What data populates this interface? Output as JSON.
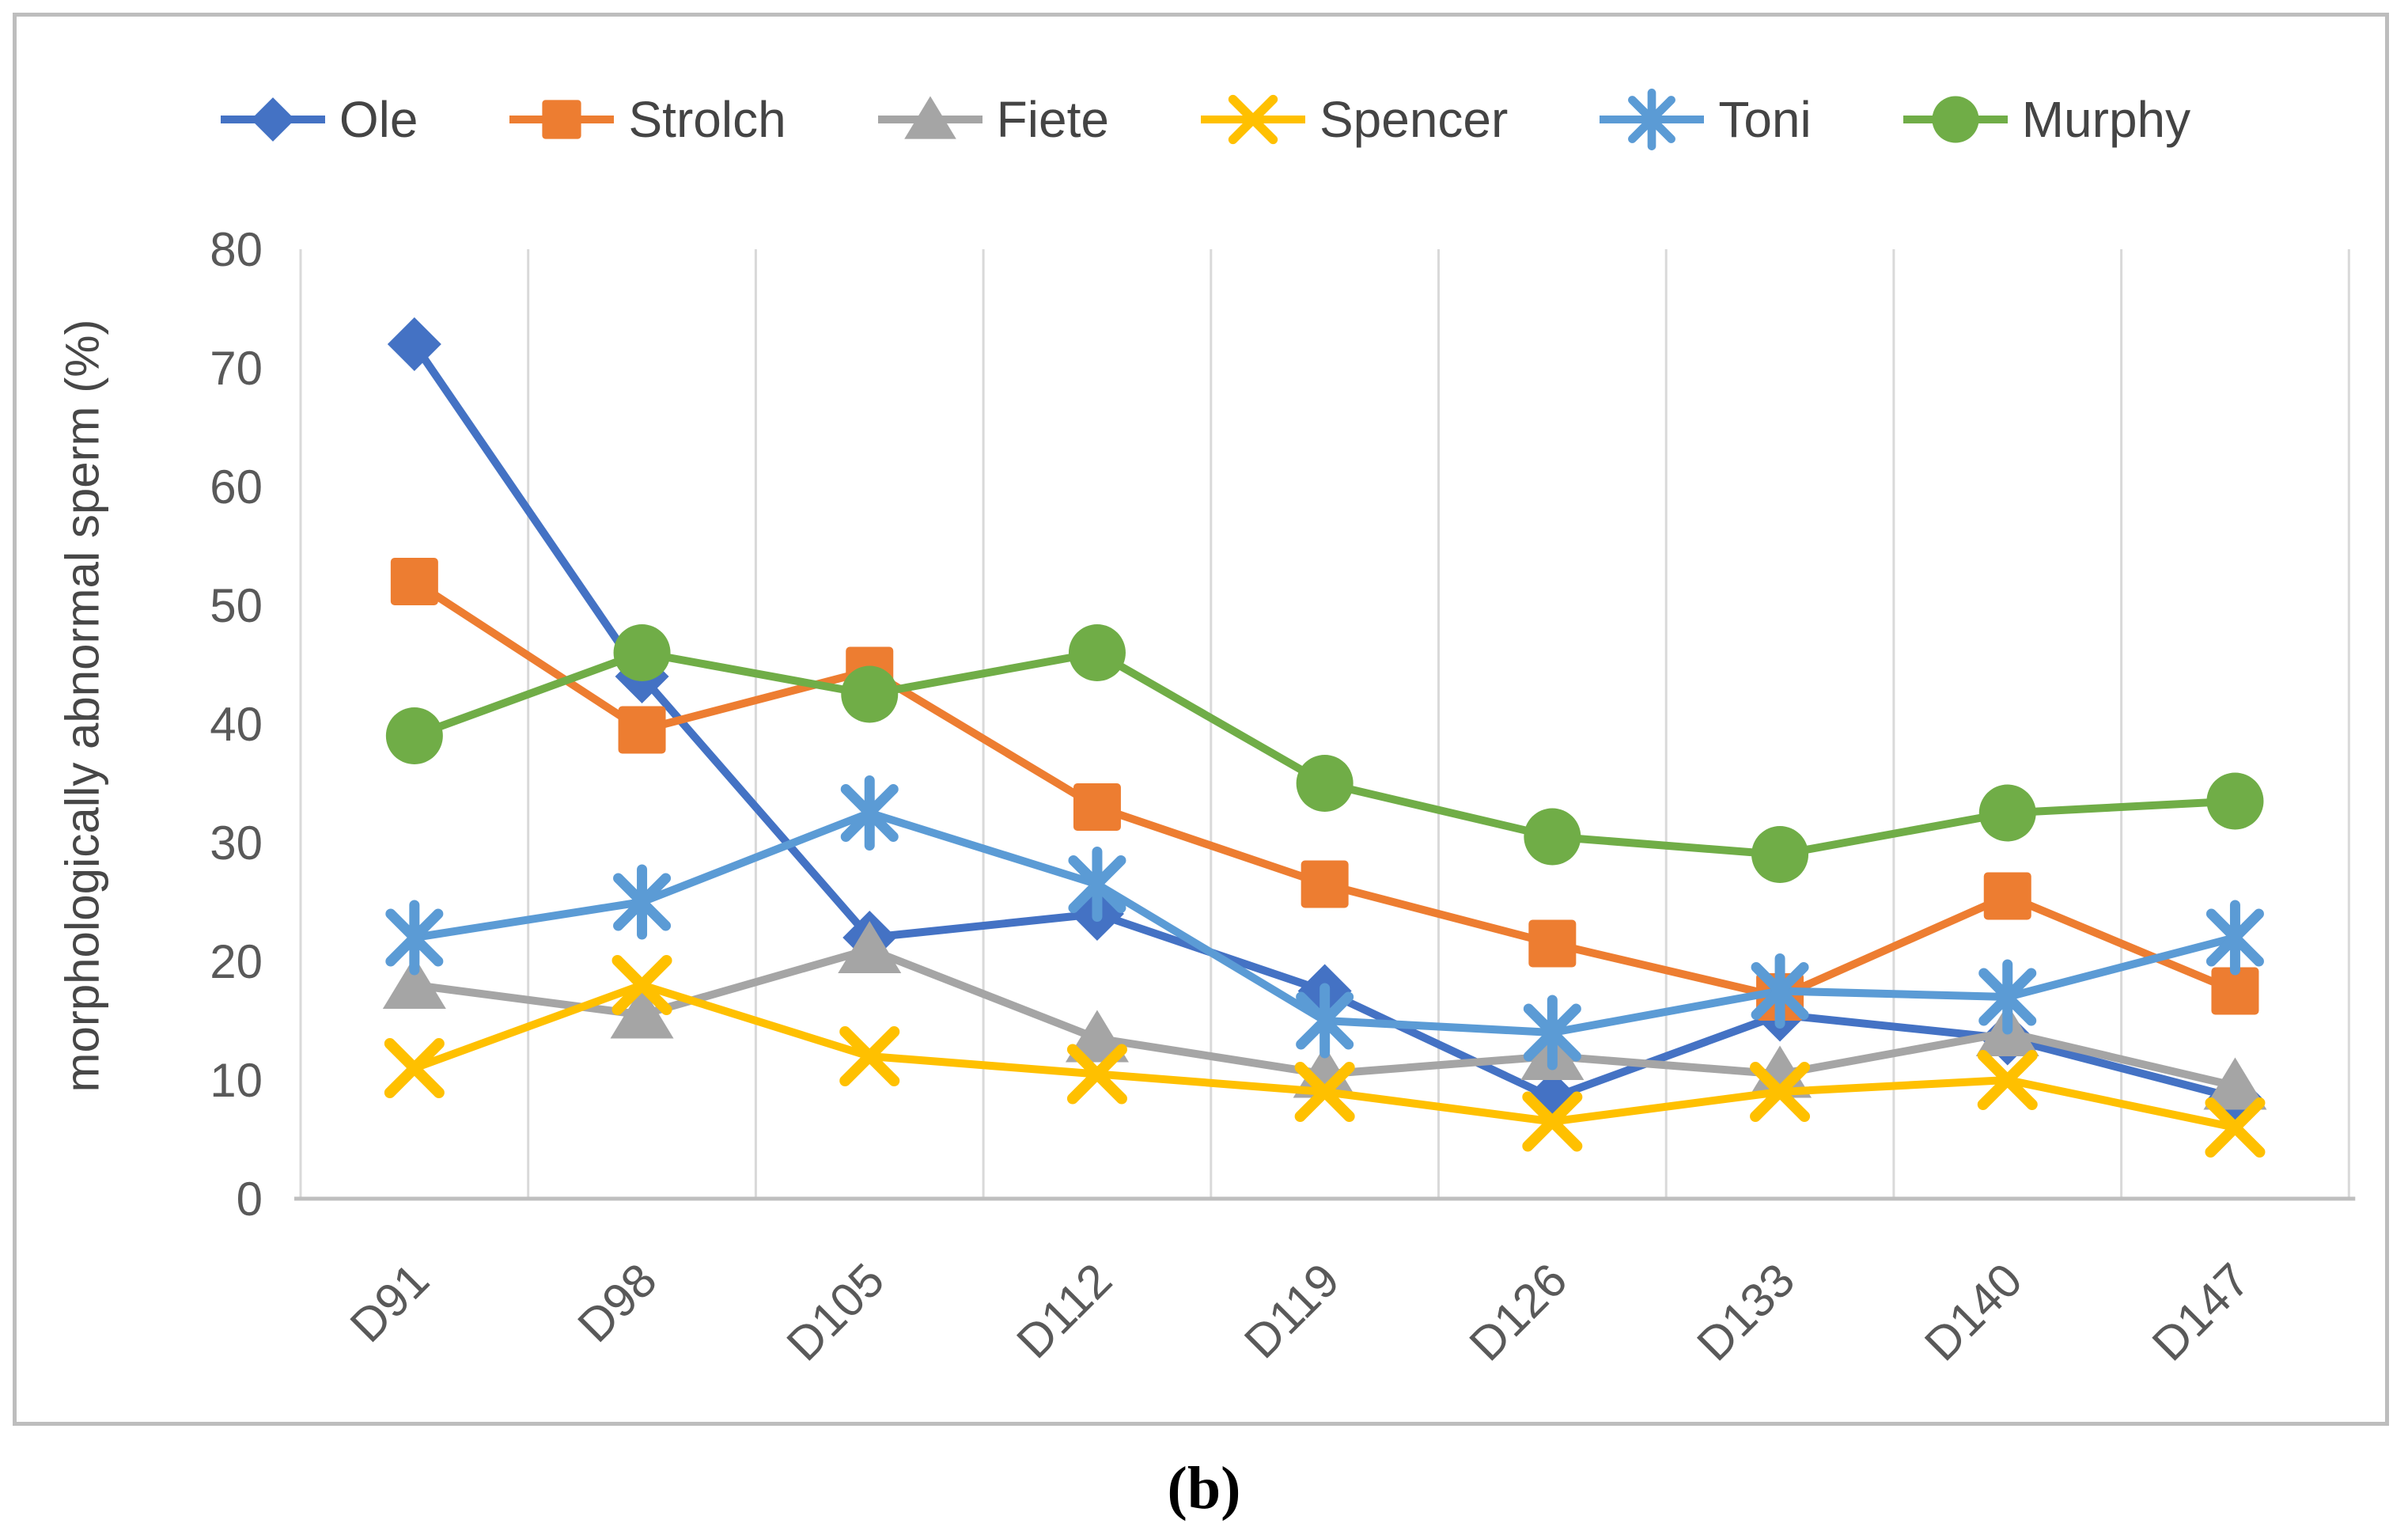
{
  "figure": {
    "caption": "(b)"
  },
  "chart_data": {
    "type": "line",
    "title": "",
    "xlabel": "",
    "ylabel": "morphologically abnormal sperm (%)",
    "ylim": [
      0,
      80
    ],
    "ytick_interval": 10,
    "grid": "vertical-only",
    "legend_position": "top",
    "y_ticks": [
      0,
      10,
      20,
      30,
      40,
      50,
      60,
      70,
      80
    ],
    "categories": [
      "D91",
      "D98",
      "D105",
      "D112",
      "D119",
      "D126",
      "D133",
      "D140",
      "D147"
    ],
    "series": [
      {
        "name": "Ole",
        "color": "#4472C4",
        "marker": "diamond",
        "values": [
          72,
          44,
          22,
          24,
          17.5,
          8.5,
          15.5,
          13.5,
          8.5
        ]
      },
      {
        "name": "Strolch",
        "color": "#ED7D31",
        "marker": "square",
        "values": [
          52,
          39.5,
          44.5,
          33,
          26.5,
          21.5,
          17,
          25.5,
          17.5
        ]
      },
      {
        "name": "Fiete",
        "color": "#A5A5A5",
        "marker": "triangle",
        "values": [
          18,
          15.5,
          21,
          13.5,
          10.5,
          12,
          10.5,
          14,
          9.5
        ]
      },
      {
        "name": "Spencer",
        "color": "#FFC000",
        "marker": "x",
        "values": [
          11,
          18,
          12,
          10.5,
          9,
          6.5,
          9,
          10,
          6
        ]
      },
      {
        "name": "Toni",
        "color": "#5B9BD5",
        "marker": "asterisk",
        "values": [
          22,
          25,
          32.5,
          26.5,
          15,
          14,
          17.5,
          17,
          22
        ]
      },
      {
        "name": "Murphy",
        "color": "#70AD47",
        "marker": "circle",
        "values": [
          39,
          46,
          42.5,
          46,
          35,
          30.5,
          29,
          32.5,
          33.5
        ]
      }
    ]
  },
  "colors": {
    "gridline": "#D9D9D9",
    "axis_line": "#BFBFBF",
    "tick_text": "#595959",
    "legend_text": "#444444",
    "frame_border": "#BDBDBD"
  }
}
